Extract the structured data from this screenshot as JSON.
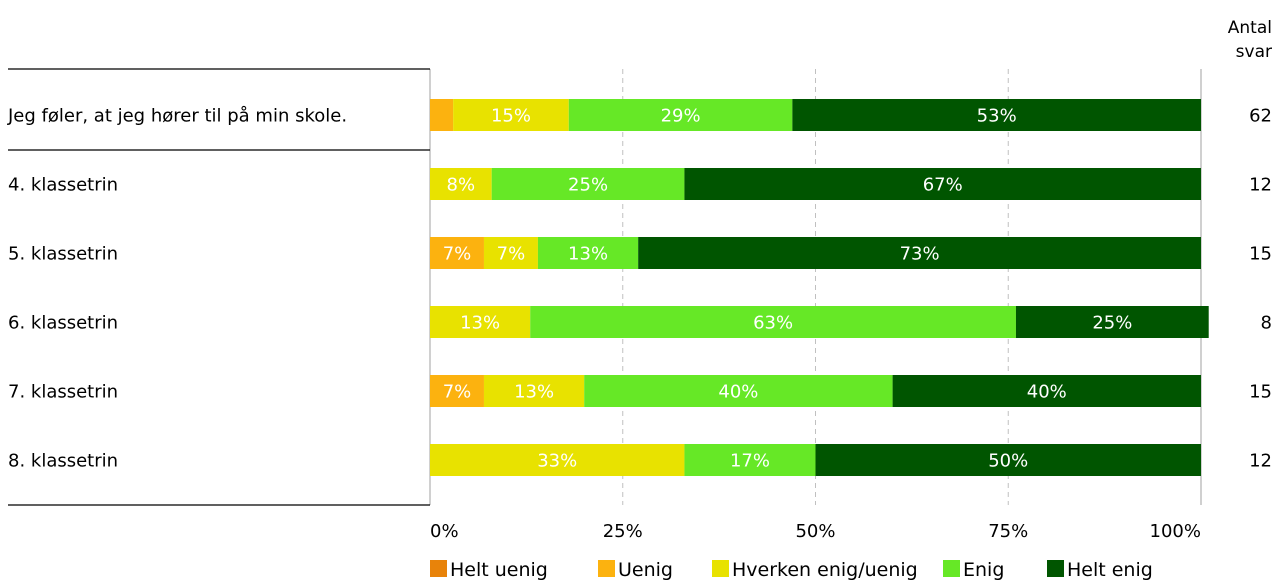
{
  "chart_data": {
    "type": "bar",
    "orientation": "horizontal",
    "stacked": true,
    "categories": [
      "Jeg føler, at jeg hører til på min skole.",
      "4. klassetrin",
      "5. klassetrin",
      "6. klassetrin",
      "7. klassetrin",
      "8. klassetrin"
    ],
    "series": [
      {
        "name": "Helt uenig",
        "color": "#e8830a",
        "values": [
          0,
          0,
          0,
          0,
          0,
          0
        ]
      },
      {
        "name": "Uenig",
        "color": "#fcb20f",
        "values": [
          3,
          0,
          7,
          0,
          7,
          0
        ]
      },
      {
        "name": "Hverken enig/uenig",
        "color": "#e8e200",
        "values": [
          15,
          8,
          7,
          13,
          13,
          33
        ]
      },
      {
        "name": "Enig",
        "color": "#66e826",
        "values": [
          29,
          25,
          13,
          63,
          40,
          17
        ]
      },
      {
        "name": "Helt enig",
        "color": "#005500",
        "values": [
          53,
          67,
          73,
          25,
          40,
          50
        ]
      }
    ],
    "value_labels": [
      [
        "",
        "",
        "15%",
        "29%",
        "53%"
      ],
      [
        "",
        "",
        "8%",
        "25%",
        "67%"
      ],
      [
        "",
        "7%",
        "7%",
        "13%",
        "73%"
      ],
      [
        "",
        "",
        "13%",
        "63%",
        "25%"
      ],
      [
        "",
        "7%",
        "13%",
        "40%",
        "40%"
      ],
      [
        "",
        "",
        "33%",
        "17%",
        "50%"
      ]
    ],
    "counts": [
      "62",
      "12",
      "15",
      "8",
      "15",
      "12"
    ],
    "count_header": [
      "Antal",
      "svar"
    ],
    "x_ticks": [
      "0%",
      "25%",
      "50%",
      "75%",
      "100%"
    ],
    "xlim": [
      0,
      100
    ],
    "grid": "vertical-dashed",
    "legend": "bottom"
  }
}
